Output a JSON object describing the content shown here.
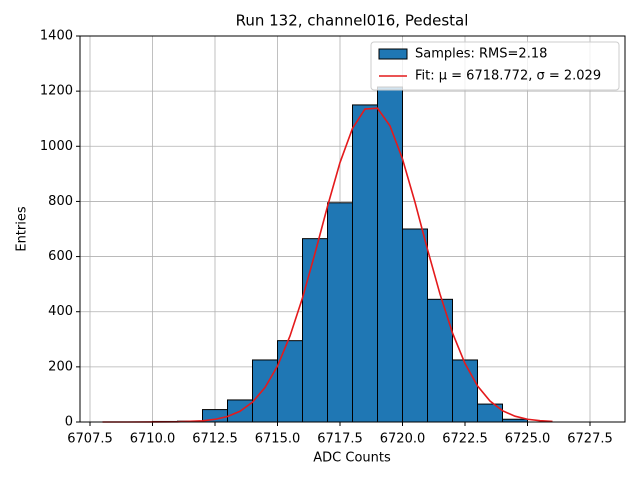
{
  "chart_data": {
    "type": "histogram",
    "title": "Run 132, channel016, Pedestal",
    "xlabel": "ADC Counts",
    "ylabel": "Entries",
    "bins": [
      6708,
      6709,
      6710,
      6711,
      6712,
      6713,
      6714,
      6715,
      6716,
      6717,
      6718,
      6719,
      6720,
      6721,
      6722,
      6723,
      6724,
      6725,
      6726
    ],
    "series": [
      {
        "name": "Samples: RMS=2.18",
        "color": "#1f77b4",
        "edgecolor": "#000000",
        "values": [
          0,
          0,
          2,
          3,
          45,
          80,
          225,
          295,
          665,
          795,
          1150,
          1215,
          700,
          445,
          225,
          65,
          10,
          0
        ]
      },
      {
        "name": "Fit: μ = 6718.772, σ = 2.029",
        "color": "#e41a1c",
        "type": "line",
        "x": [
          6708,
          6709,
          6710,
          6711,
          6712,
          6712.5,
          6713,
          6713.5,
          6714,
          6714.5,
          6715,
          6715.5,
          6716,
          6716.5,
          6717,
          6717.5,
          6718,
          6718.5,
          6719,
          6719.5,
          6720,
          6720.5,
          6721,
          6721.5,
          6722,
          6722.5,
          6723,
          6723.5,
          6724,
          6724.5,
          6725,
          6725.5,
          6726
        ],
        "values": [
          0,
          0.01,
          0.1,
          0.7,
          4.4,
          9.6,
          20,
          39,
          72,
          125,
          203,
          312,
          450,
          612,
          782,
          941,
          1065,
          1135,
          1138,
          1074,
          954,
          797,
          626,
          464,
          323,
          212,
          131,
          76,
          41,
          21,
          10,
          4.7,
          2
        ]
      }
    ],
    "xlim": [
      6707.1,
      6728.9
    ],
    "ylim": [
      0,
      1400
    ],
    "xticks": [
      6707.5,
      {
        "value": 6710,
        "label": "6710.0"
      },
      6712.5,
      {
        "value": 6715,
        "label": "6715.0"
      },
      6717.5,
      {
        "value": 6720,
        "label": "6720.0"
      },
      6722.5,
      {
        "value": 6725,
        "label": "6725.0"
      },
      6727.5
    ],
    "yticks": [
      0,
      200,
      400,
      600,
      800,
      1000,
      1200,
      1400
    ],
    "grid": true,
    "legend": "upper right"
  }
}
